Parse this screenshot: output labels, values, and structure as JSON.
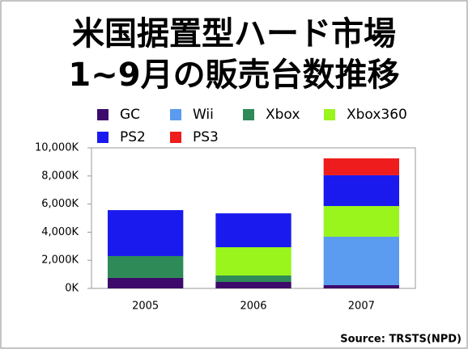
{
  "chart_data": {
    "type": "stacked_bar",
    "title": "米国据置型ハード市場",
    "subtitle": "1~9月の販売台数推移",
    "source": "Source: TRSTS(NPD)",
    "categories": [
      "2005",
      "2006",
      "2007"
    ],
    "series": [
      {
        "name": "GC",
        "color": "#3d0a6b",
        "values": [
          750,
          460,
          230
        ]
      },
      {
        "name": "Wii",
        "color": "#5b9bf0",
        "values": [
          0,
          0,
          3450
        ]
      },
      {
        "name": "Xbox",
        "color": "#2e8b57",
        "values": [
          1550,
          460,
          0
        ]
      },
      {
        "name": "Xbox360",
        "color": "#99f51b",
        "values": [
          0,
          2010,
          2180
        ]
      },
      {
        "name": "PS2",
        "color": "#1a1aef",
        "values": [
          3270,
          2410,
          2190
        ]
      },
      {
        "name": "PS3",
        "color": "#ee1c1c",
        "values": [
          0,
          0,
          1200
        ]
      }
    ],
    "ylim": [
      0,
      10000
    ],
    "yticks": [
      {
        "value": 0,
        "label": "0K"
      },
      {
        "value": 2000,
        "label": "2,000K"
      },
      {
        "value": 4000,
        "label": "4,000K"
      },
      {
        "value": 6000,
        "label": "6,000K"
      },
      {
        "value": 8000,
        "label": "8,000K"
      },
      {
        "value": 10000,
        "label": "10,000K"
      }
    ],
    "grid": false
  }
}
